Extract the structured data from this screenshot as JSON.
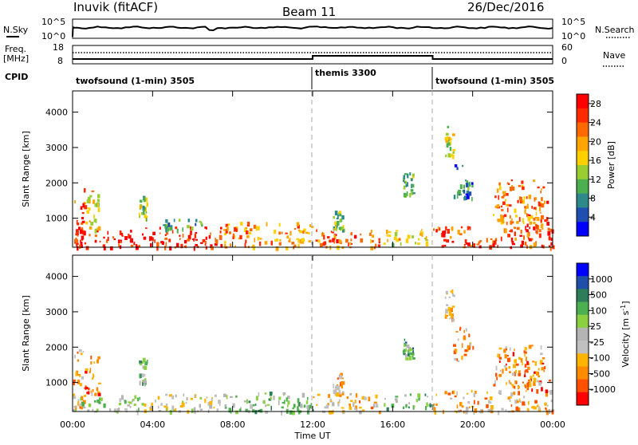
{
  "header": {
    "station": "Inuvik (fitACF)",
    "beam": "Beam 11",
    "date": "26/Dec/2016"
  },
  "sky_panel": {
    "left_label": "N.Sky",
    "left_ticks": [
      "10^5",
      "10^0"
    ],
    "right_label": "N.Search",
    "right_ticks": [
      "10^5",
      "10^0"
    ]
  },
  "freq_panel": {
    "left_label_1": "Freq.",
    "left_label_2": "[MHz]",
    "left_ticks": [
      "18",
      "8"
    ],
    "right_label": "Nave",
    "right_ticks": [
      "60",
      "0"
    ]
  },
  "cpid_panel": {
    "label": "CPID",
    "segments": [
      {
        "text": "twofsound (1-min) 3505",
        "start_hour": 0,
        "end_hour": 12
      },
      {
        "text": "themis 3300",
        "start_hour": 12,
        "end_hour": 18
      },
      {
        "text": "twofsound (1-min) 3505",
        "start_hour": 18,
        "end_hour": 24
      }
    ]
  },
  "colors": {
    "power_scale": [
      "#0000ff",
      "#1f4fb0",
      "#2e8a8a",
      "#4caf50",
      "#9acd32",
      "#ffd000",
      "#ffa500",
      "#ff6a00",
      "#ff2a00",
      "#ff0000"
    ],
    "velocity_scale": [
      "#ff0000",
      "#ff5000",
      "#ff8c00",
      "#ffb400",
      "#c0c0c0",
      "#b4b4b4",
      "#8ad040",
      "#4caf50",
      "#2e7d5a",
      "#1f4fa8",
      "#0000ff"
    ],
    "axis": "#000000",
    "dashed_divider": "#aaaaaa"
  },
  "chart_data": [
    {
      "type": "heatmap",
      "name": "power",
      "ylabel": "Slant Range [km]",
      "xlabel": "",
      "x_ticks": [
        "00:00",
        "04:00",
        "08:00",
        "12:00",
        "16:00",
        "20:00",
        "00:00"
      ],
      "y_ticks": [
        1000,
        2000,
        3000,
        4000
      ],
      "xlim_hours": [
        0,
        24
      ],
      "ylim_km": [
        180,
        4600
      ],
      "colorbar": {
        "label": "Power [dB]",
        "ticks": [
          4,
          8,
          12,
          16,
          20,
          24,
          28
        ],
        "range": [
          0,
          30
        ]
      },
      "patches": [
        {
          "t0": 0.0,
          "t1": 0.6,
          "r0": 300,
          "r1": 2000,
          "level": 0.85
        },
        {
          "t0": 0.0,
          "t1": 3.5,
          "r0": 200,
          "r1": 700,
          "level": 0.92
        },
        {
          "t0": 0.6,
          "t1": 1.3,
          "r0": 700,
          "r1": 1800,
          "level": 0.55
        },
        {
          "t0": 3.3,
          "t1": 3.7,
          "r0": 1000,
          "r1": 1700,
          "level": 0.45
        },
        {
          "t0": 3.5,
          "t1": 7.5,
          "r0": 200,
          "r1": 800,
          "level": 0.88
        },
        {
          "t0": 4.5,
          "t1": 6.5,
          "r0": 700,
          "r1": 1000,
          "level": 0.35
        },
        {
          "t0": 7.5,
          "t1": 12.0,
          "r0": 200,
          "r1": 900,
          "level": 0.7
        },
        {
          "t0": 12.0,
          "t1": 15.5,
          "r0": 200,
          "r1": 700,
          "level": 0.75
        },
        {
          "t0": 13.0,
          "t1": 13.5,
          "r0": 700,
          "r1": 1300,
          "level": 0.4
        },
        {
          "t0": 15.5,
          "t1": 18.0,
          "r0": 300,
          "r1": 700,
          "level": 0.55
        },
        {
          "t0": 16.5,
          "t1": 17.0,
          "r0": 1700,
          "r1": 2300,
          "level": 0.35
        },
        {
          "t0": 18.0,
          "t1": 24.0,
          "r0": 200,
          "r1": 800,
          "level": 0.82
        },
        {
          "t0": 18.6,
          "t1": 19.0,
          "r0": 2800,
          "r1": 3700,
          "level": 0.5
        },
        {
          "t0": 19.0,
          "t1": 20.0,
          "r0": 1600,
          "r1": 2600,
          "level": 0.25
        },
        {
          "t0": 21.0,
          "t1": 23.5,
          "r0": 900,
          "r1": 2100,
          "level": 0.7
        },
        {
          "t0": 22.5,
          "t1": 23.8,
          "r0": 800,
          "r1": 1500,
          "level": 0.8
        }
      ]
    },
    {
      "type": "heatmap",
      "name": "velocity",
      "ylabel": "Slant Range [km]",
      "xlabel": "Time UT",
      "x_ticks": [
        "00:00",
        "04:00",
        "08:00",
        "12:00",
        "16:00",
        "20:00",
        "00:00"
      ],
      "y_ticks": [
        1000,
        2000,
        3000,
        4000
      ],
      "xlim_hours": [
        0,
        24
      ],
      "ylim_km": [
        180,
        4600
      ],
      "colorbar": {
        "label": "Velocity [m s",
        "label_sup": "-1",
        "label_end": "]",
        "ticks": [
          "1000",
          "500",
          "100",
          "25",
          "-25",
          "-100",
          "-500",
          "-1000"
        ]
      },
      "patches": [
        {
          "t0": 0.0,
          "t1": 0.6,
          "r0": 300,
          "r1": 2000,
          "level": 0.25
        },
        {
          "t0": 0.0,
          "t1": 3.5,
          "r0": 200,
          "r1": 700,
          "level": 0.55
        },
        {
          "t0": 0.6,
          "t1": 1.3,
          "r0": 700,
          "r1": 1800,
          "level": 0.2
        },
        {
          "t0": 3.3,
          "t1": 3.7,
          "r0": 1000,
          "r1": 1700,
          "level": 0.6
        },
        {
          "t0": 3.5,
          "t1": 7.5,
          "r0": 200,
          "r1": 700,
          "level": 0.45
        },
        {
          "t0": 7.5,
          "t1": 12.0,
          "r0": 200,
          "r1": 800,
          "level": 0.6
        },
        {
          "t0": 12.0,
          "t1": 15.5,
          "r0": 200,
          "r1": 700,
          "level": 0.35
        },
        {
          "t0": 13.0,
          "t1": 13.5,
          "r0": 700,
          "r1": 1300,
          "level": 0.3
        },
        {
          "t0": 15.5,
          "t1": 18.0,
          "r0": 300,
          "r1": 700,
          "level": 0.65
        },
        {
          "t0": 16.5,
          "t1": 17.0,
          "r0": 1700,
          "r1": 2300,
          "level": 0.7
        },
        {
          "t0": 18.0,
          "t1": 24.0,
          "r0": 200,
          "r1": 800,
          "level": 0.3
        },
        {
          "t0": 18.6,
          "t1": 19.0,
          "r0": 2800,
          "r1": 3700,
          "level": 0.3
        },
        {
          "t0": 19.0,
          "t1": 20.0,
          "r0": 1600,
          "r1": 2600,
          "level": 0.25
        },
        {
          "t0": 21.0,
          "t1": 23.5,
          "r0": 900,
          "r1": 2100,
          "level": 0.25
        },
        {
          "t0": 22.5,
          "t1": 23.8,
          "r0": 800,
          "r1": 1500,
          "level": 0.2
        }
      ]
    }
  ]
}
